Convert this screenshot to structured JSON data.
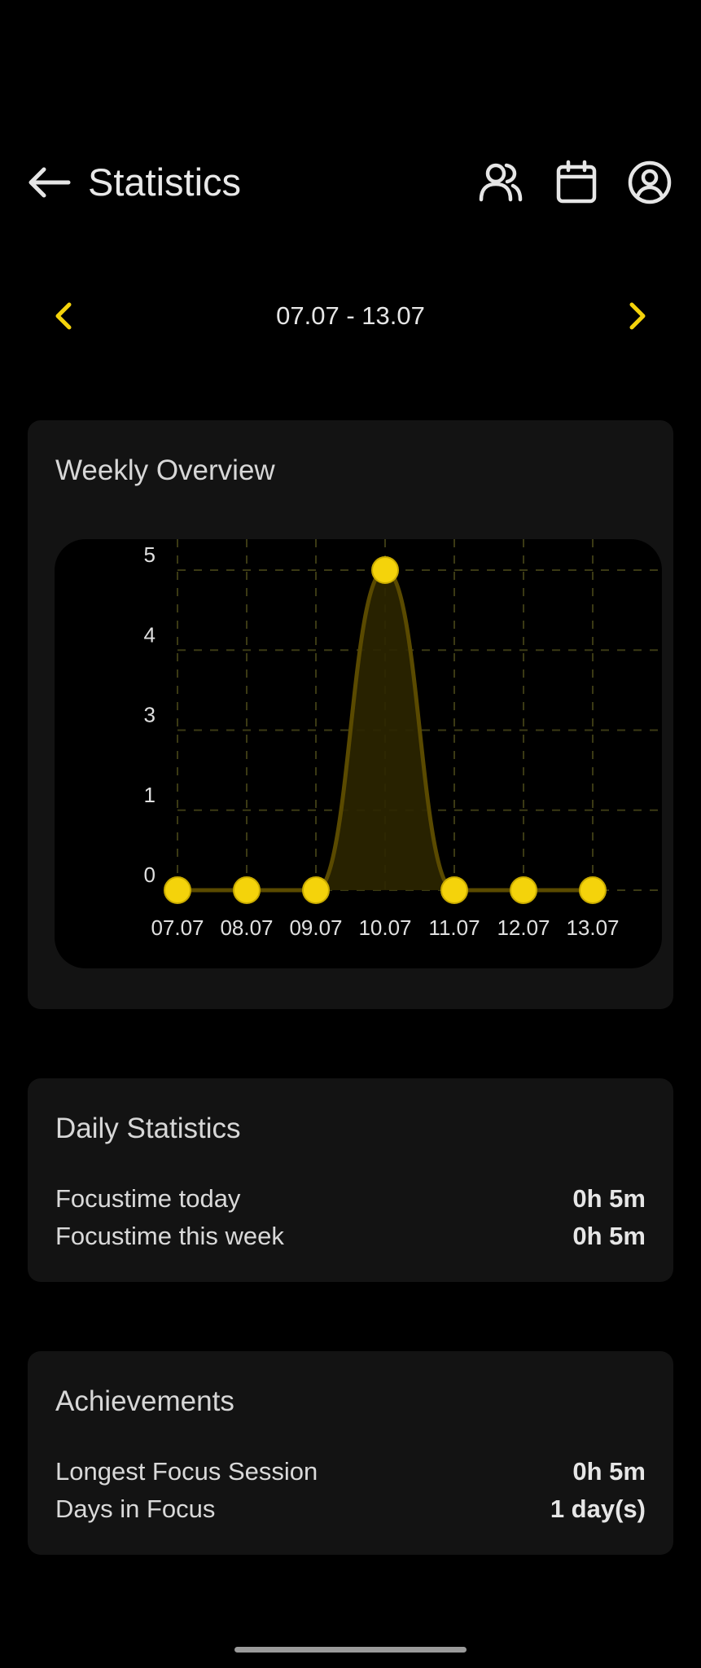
{
  "header": {
    "title": "Statistics",
    "icons": [
      "back-arrow-icon",
      "users-icon",
      "calendar-icon",
      "profile-icon"
    ]
  },
  "week_nav": {
    "label": "07.07 - 13.07"
  },
  "weekly_overview": {
    "title": "Weekly Overview"
  },
  "chart_data": {
    "type": "line",
    "categories": [
      "07.07",
      "08.07",
      "09.07",
      "10.07",
      "11.07",
      "12.07",
      "13.07"
    ],
    "values": [
      0,
      0,
      0,
      5,
      0,
      0,
      0
    ],
    "y_ticks": [
      "0",
      "1",
      "3",
      "4",
      "5"
    ],
    "title": "",
    "xlabel": "",
    "ylabel": "",
    "ylim": [
      0,
      5
    ],
    "grid": true,
    "smooth": true,
    "colors": {
      "line": "#5a4a00",
      "fill": "#2c2600",
      "point": "#f4d30b",
      "grid": "#3b3a14"
    }
  },
  "daily_statistics": {
    "title": "Daily Statistics",
    "rows": [
      {
        "label": "Focustime today",
        "value": "0h 5m"
      },
      {
        "label": "Focustime this week",
        "value": "0h 5m"
      }
    ]
  },
  "achievements": {
    "title": "Achievements",
    "rows": [
      {
        "label": "Longest Focus Session",
        "value": "0h 5m"
      },
      {
        "label": "Days in Focus",
        "value": "1 day(s)"
      }
    ]
  },
  "colors": {
    "background": "#000000",
    "card": "#131313",
    "accent": "#f4d30b"
  }
}
